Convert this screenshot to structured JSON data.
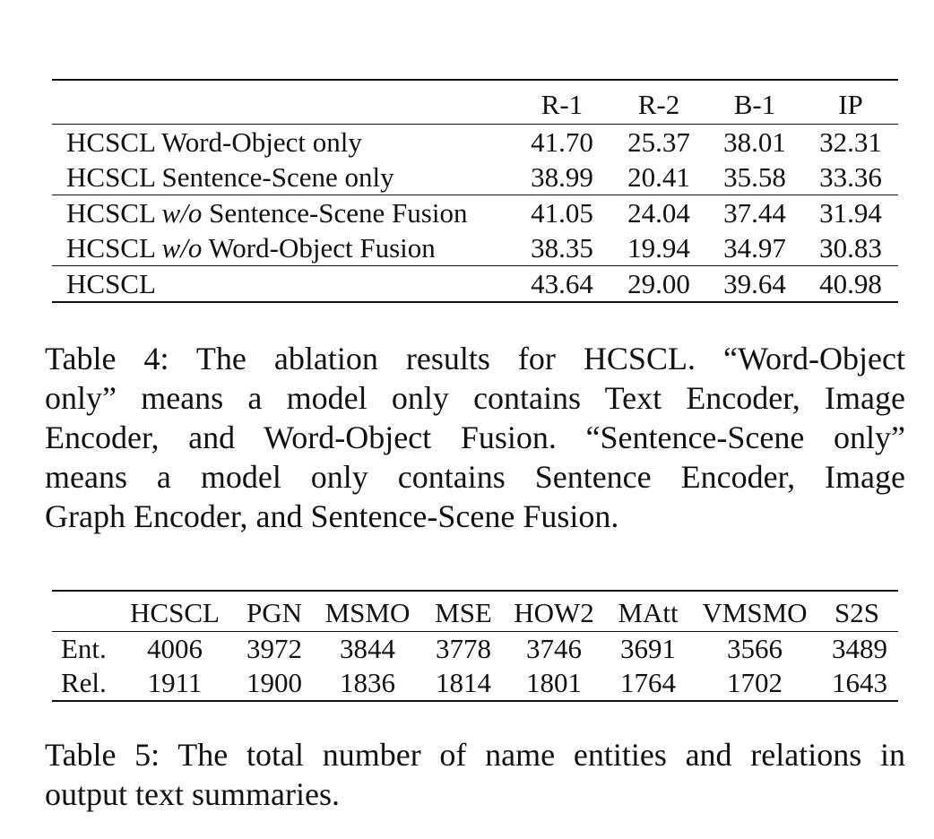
{
  "table4": {
    "columns": [
      "R-1",
      "R-2",
      "B-1",
      "IP"
    ],
    "rows": [
      {
        "prefix": "HCSCL Word-Object only",
        "italic": "",
        "suffix": "",
        "values": [
          "41.70",
          "25.37",
          "38.01",
          "32.31"
        ]
      },
      {
        "prefix": "HCSCL Sentence-Scene only",
        "italic": "",
        "suffix": "",
        "values": [
          "38.99",
          "20.41",
          "35.58",
          "33.36"
        ]
      },
      {
        "prefix": "HCSCL ",
        "italic": "w/o",
        "suffix": " Sentence-Scene Fusion",
        "values": [
          "41.05",
          "24.04",
          "37.44",
          "31.94"
        ]
      },
      {
        "prefix": "HCSCL ",
        "italic": "w/o",
        "suffix": " Word-Object Fusion",
        "values": [
          "38.35",
          "19.94",
          "34.97",
          "30.83"
        ]
      },
      {
        "prefix": "HCSCL",
        "italic": "",
        "suffix": "",
        "values": [
          "43.64",
          "29.00",
          "39.64",
          "40.98"
        ]
      }
    ],
    "caption_lines": [
      "Table 4: The ablation results for HCSCL. “Word-Object",
      "only” means a model only contains Text Encoder, Image",
      "Encoder, and Word-Object Fusion. “Sentence-Scene only”",
      "means a model only contains Sentence Encoder, Image",
      "Graph Encoder, and Sentence-Scene Fusion."
    ]
  },
  "table5": {
    "columns": [
      "HCSCL",
      "PGN",
      "MSMO",
      "MSE",
      "HOW2",
      "MAtt",
      "VMSMO",
      "S2S"
    ],
    "rows": [
      {
        "label": "Ent.",
        "values": [
          "4006",
          "3972",
          "3844",
          "3778",
          "3746",
          "3691",
          "3566",
          "3489"
        ]
      },
      {
        "label": "Rel.",
        "values": [
          "1911",
          "1900",
          "1836",
          "1814",
          "1801",
          "1764",
          "1702",
          "1643"
        ]
      }
    ],
    "caption_lines": [
      "Table 5: The total number of name entities and relations in",
      "output text summaries."
    ]
  }
}
